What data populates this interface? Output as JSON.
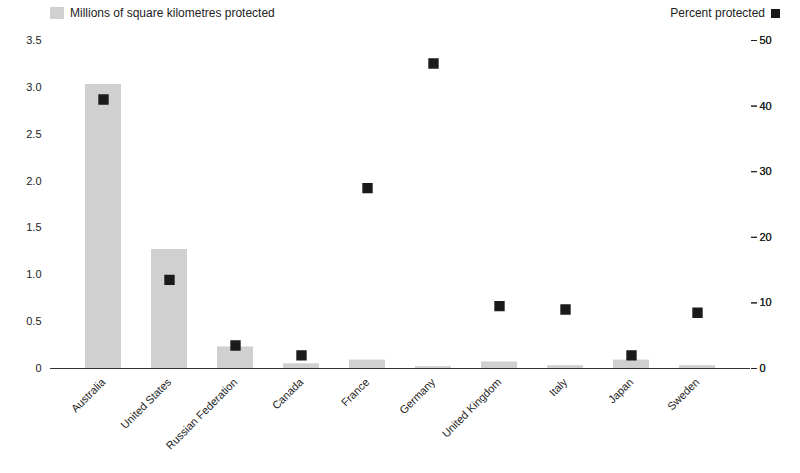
{
  "chart_data": {
    "type": "bar",
    "categories": [
      "Australia",
      "United States",
      "Russian Federation",
      "Canada",
      "France",
      "Germany",
      "United Kingdom",
      "Italy",
      "Japan",
      "Sweden"
    ],
    "series": [
      {
        "name": "Millions of square kilometres protected",
        "type": "bar",
        "color": "#d0d0d0",
        "values": [
          3.03,
          1.27,
          0.23,
          0.05,
          0.09,
          0.02,
          0.07,
          0.03,
          0.09,
          0.03
        ]
      },
      {
        "name": "Percent protected",
        "type": "scatter",
        "marker": "square",
        "color": "#1a1a1a",
        "axis": "y2",
        "values": [
          41.0,
          13.5,
          3.5,
          2.0,
          27.5,
          46.5,
          9.5,
          9.0,
          2.0,
          8.5
        ]
      }
    ],
    "ylim": [
      0,
      3.5
    ],
    "yticks": [
      0,
      0.5,
      {
        "value": 1,
        "label": "1.0"
      },
      1.5,
      {
        "value": 2,
        "label": "2.0"
      },
      2.5,
      {
        "value": 3,
        "label": "3.0"
      },
      3.5
    ],
    "y2lim": [
      0,
      50
    ],
    "y2ticks": [
      0,
      10,
      20,
      30,
      40,
      50
    ],
    "legend": "top"
  }
}
